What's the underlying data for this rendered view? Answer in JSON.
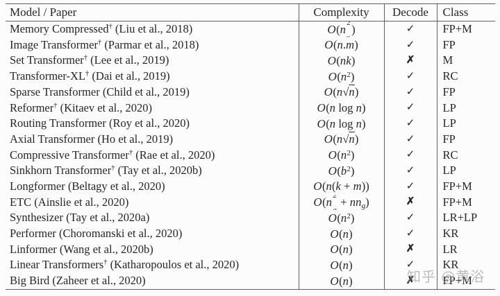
{
  "colors": {
    "rule": "#5f5f5f",
    "text": "#262626",
    "background": "#fcfcfc",
    "watermark": "#919191"
  },
  "table": {
    "headers": [
      "Model / Paper",
      "Complexity",
      "Decode",
      "Class"
    ],
    "dagger_symbol": "†",
    "decode_yes_symbol": "✓",
    "decode_no_symbol": "✗",
    "rows": [
      {
        "model": "Memory Compressed",
        "dagger": true,
        "cite": "(Liu et al., 2018)",
        "complexity": "O(n_c^2)",
        "decode": "✓",
        "class": "FP+M"
      },
      {
        "model": "Image Transformer",
        "dagger": true,
        "cite": "(Parmar et al., 2018)",
        "complexity": "O(n.m)",
        "decode": "✓",
        "class": "FP"
      },
      {
        "model": "Set Transformer",
        "dagger": true,
        "cite": "(Lee et al., 2019)",
        "complexity": "O(nk)",
        "decode": "✗",
        "class": "M"
      },
      {
        "model": "Transformer-XL",
        "dagger": true,
        "cite": "(Dai et al., 2019)",
        "complexity": "O(n^2)",
        "decode": "✓",
        "class": "RC"
      },
      {
        "model": "Sparse Transformer",
        "dagger": false,
        "cite": "(Child et al., 2019)",
        "complexity": "O(n√n)",
        "decode": "✓",
        "class": "FP"
      },
      {
        "model": "Reformer",
        "dagger": true,
        "cite": "(Kitaev et al., 2020)",
        "complexity": "O(n log n)",
        "decode": "✓",
        "class": "LP"
      },
      {
        "model": "Routing Transformer",
        "dagger": false,
        "cite": "(Roy et al., 2020)",
        "complexity": "O(n log n)",
        "decode": "✓",
        "class": "LP"
      },
      {
        "model": "Axial Transformer",
        "dagger": false,
        "cite": "(Ho et al., 2019)",
        "complexity": "O(n√n)",
        "decode": "✓",
        "class": "FP"
      },
      {
        "model": "Compressive Transformer",
        "dagger": true,
        "cite": "(Rae et al., 2020)",
        "complexity": "O(n^2)",
        "decode": "✓",
        "class": "RC"
      },
      {
        "model": "Sinkhorn Transformer",
        "dagger": true,
        "cite": "(Tay et al., 2020b)",
        "complexity": "O(b^2)",
        "decode": "✓",
        "class": "LP"
      },
      {
        "model": "Longformer",
        "dagger": false,
        "cite": "(Beltagy et al., 2020)",
        "complexity": "O(n(k + m))",
        "decode": "✓",
        "class": "FP+M"
      },
      {
        "model": "ETC",
        "dagger": false,
        "cite": "(Ainslie et al., 2020)",
        "complexity": "O(n_g^2 + nn_g)",
        "decode": "✗",
        "class": "FP+M"
      },
      {
        "model": "Synthesizer",
        "dagger": false,
        "cite": "(Tay et al., 2020a)",
        "complexity": "O(n^2)",
        "decode": "✓",
        "class": "LR+LP"
      },
      {
        "model": "Performer",
        "dagger": false,
        "cite": "(Choromanski et al., 2020)",
        "complexity": "O(n)",
        "decode": "✓",
        "class": "KR"
      },
      {
        "model": "Linformer",
        "dagger": false,
        "cite": "(Wang et al., 2020b)",
        "complexity": "O(n)",
        "decode": "✗",
        "class": "LR"
      },
      {
        "model": "Linear Transformers",
        "dagger": true,
        "cite": "(Katharopoulos et al., 2020)",
        "complexity": "O(n)",
        "decode": "✓",
        "class": "KR"
      },
      {
        "model": "Big Bird",
        "dagger": false,
        "cite": "(Zaheer et al., 2020)",
        "complexity": "O(n)",
        "decode": "✗",
        "class": "FP+M"
      }
    ]
  },
  "watermark": {
    "text": "知乎 @黄浴"
  }
}
